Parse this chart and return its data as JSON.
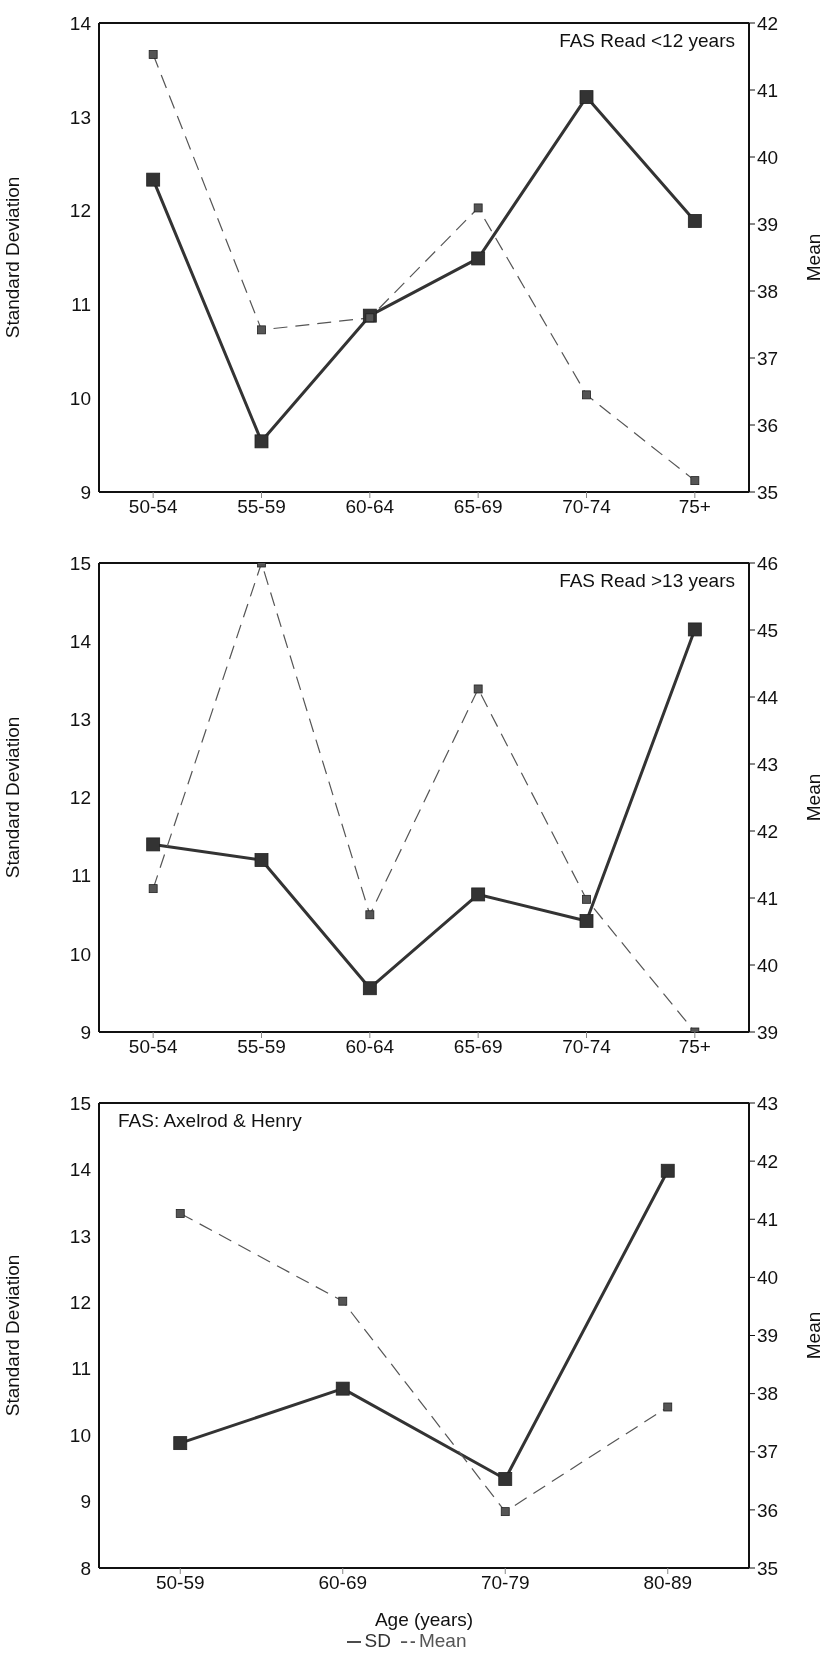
{
  "chart_data": [
    {
      "type": "line",
      "title": "FAS Read <12 years",
      "ylabel": "Standard Deviation",
      "y2label": "Mean",
      "categories": [
        "50-54",
        "55-59",
        "60-64",
        "65-69",
        "70-74",
        "75+"
      ],
      "series": [
        {
          "color": "#333333",
          "marker": "square",
          "line_style": "solid",
          "values": [
            12.33,
            9.54,
            10.88,
            11.49,
            13.21,
            11.89
          ]
        },
        {
          "color": "#555555",
          "marker": "square",
          "line_style": "dashed",
          "axis": "y2",
          "values": [
            41.53,
            37.42,
            37.6,
            39.24,
            36.45,
            35.17
          ]
        }
      ],
      "ylim": [
        9,
        14
      ],
      "yticks": [
        9,
        10,
        11,
        12,
        13,
        14
      ],
      "y2lim": [
        35,
        42
      ],
      "y2ticks": [
        35,
        36,
        37,
        38,
        39,
        40,
        41,
        42
      ],
      "grid": false,
      "legend": false
    },
    {
      "type": "line",
      "title": "FAS Read >13 years",
      "ylabel": "Standard Deviation",
      "y2label": "Mean",
      "categories": [
        "50-54",
        "55-59",
        "60-64",
        "65-69",
        "70-74",
        "75+"
      ],
      "series": [
        {
          "color": "#333333",
          "marker": "square",
          "line_style": "solid",
          "values": [
            11.4,
            11.2,
            9.56,
            10.76,
            10.42,
            14.15
          ]
        },
        {
          "color": "#555555",
          "marker": "square",
          "line_style": "dashed",
          "axis": "y2",
          "values": [
            41.14,
            46.0,
            40.75,
            44.12,
            40.98,
            39.0
          ]
        }
      ],
      "ylim": [
        9,
        15
      ],
      "yticks": [
        9,
        10,
        11,
        12,
        13,
        14,
        15
      ],
      "y2lim": [
        39,
        46
      ],
      "y2ticks": [
        39,
        40,
        41,
        42,
        43,
        44,
        45,
        46
      ],
      "grid": false,
      "legend": false
    },
    {
      "type": "line",
      "title": "FAS: Axelrod & Henry",
      "xlabel": "Age (years)",
      "ylabel": "Standard Deviation",
      "y2label": "Mean",
      "categories": [
        "50-59",
        "60-69",
        "70-79",
        "80-89"
      ],
      "series": [
        {
          "name": "SD",
          "color": "#333333",
          "marker": "square",
          "line_style": "solid",
          "values": [
            9.88,
            10.7,
            9.34,
            13.98
          ]
        },
        {
          "name": "Mean",
          "color": "#555555",
          "marker": "square",
          "line_style": "dashed",
          "axis": "y2",
          "values": [
            41.1,
            39.59,
            35.97,
            37.77
          ]
        }
      ],
      "ylim": [
        8,
        15
      ],
      "yticks": [
        8,
        9,
        10,
        11,
        12,
        13,
        14,
        15
      ],
      "y2lim": [
        35,
        43
      ],
      "y2ticks": [
        35,
        36,
        37,
        38,
        39,
        40,
        41,
        42,
        43
      ],
      "grid": false,
      "legend": "bottom"
    }
  ]
}
